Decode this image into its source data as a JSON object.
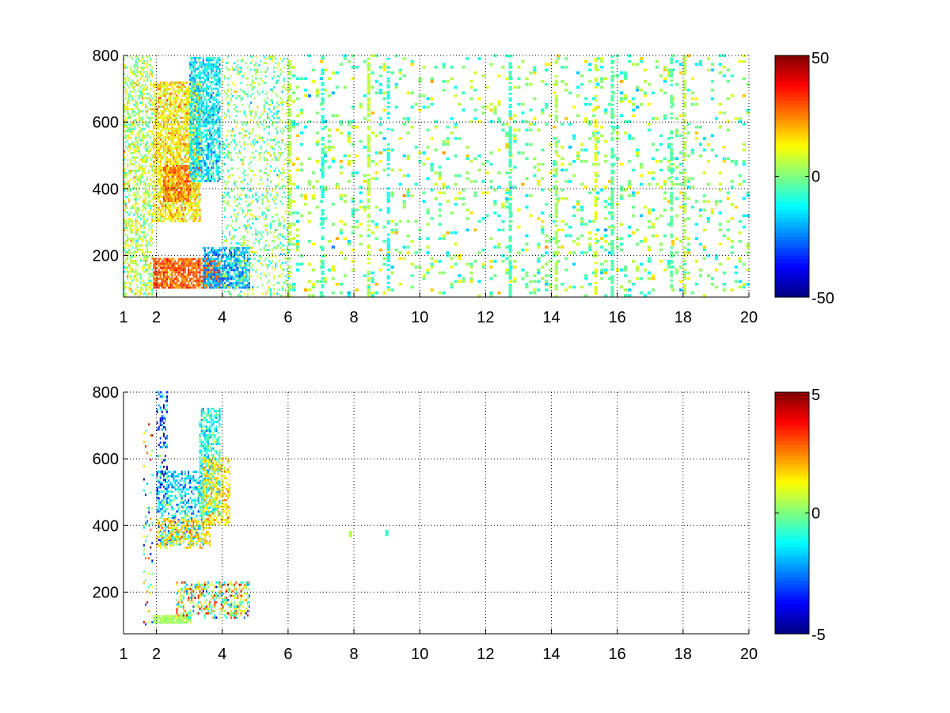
{
  "chart_data": [
    {
      "type": "heatmap",
      "title": "",
      "xlabel": "",
      "ylabel": "",
      "x_ticks": [
        1,
        2,
        4,
        6,
        8,
        10,
        12,
        14,
        16,
        18,
        20
      ],
      "y_ticks": [
        200,
        400,
        600,
        800
      ],
      "xlim": [
        1,
        20
      ],
      "ylim": [
        75,
        800
      ],
      "grid": true,
      "colormap": "jet",
      "colorbar": {
        "range": [
          -50,
          50
        ],
        "ticks": [
          50,
          0,
          -50
        ]
      },
      "regions": [
        {
          "x": [
            1.0,
            1.9
          ],
          "y": [
            75,
            800
          ],
          "z": 5,
          "density": 0.45,
          "spread": 12
        },
        {
          "x": [
            1.9,
            3.3
          ],
          "y": [
            300,
            720
          ],
          "z": 14,
          "density": 0.72,
          "spread": 10
        },
        {
          "x": [
            2.2,
            3.0
          ],
          "y": [
            360,
            470
          ],
          "z": 25,
          "density": 0.8,
          "spread": 8
        },
        {
          "x": [
            3.0,
            3.9
          ],
          "y": [
            420,
            790
          ],
          "z": -14,
          "density": 0.7,
          "spread": 10
        },
        {
          "x": [
            1.9,
            3.9
          ],
          "y": [
            100,
            190
          ],
          "z": 28,
          "density": 0.85,
          "spread": 8
        },
        {
          "x": [
            3.4,
            4.8
          ],
          "y": [
            100,
            220
          ],
          "z": -22,
          "density": 0.7,
          "spread": 8
        },
        {
          "x": [
            4.0,
            6.0
          ],
          "y": [
            75,
            800
          ],
          "z": 0,
          "density": 0.22,
          "spread": 12
        },
        {
          "x": [
            6.0,
            20.0
          ],
          "y": [
            75,
            800
          ],
          "z": 0,
          "density": 0.14,
          "spread": 12
        }
      ],
      "stripes": [
        {
          "x": 6.0,
          "z": 5
        },
        {
          "x": 7.0,
          "z": -8
        },
        {
          "x": 8.4,
          "z": 6
        },
        {
          "x": 9.0,
          "z": -10
        },
        {
          "x": 12.7,
          "z": -6
        },
        {
          "x": 14.1,
          "z": 5
        },
        {
          "x": 15.3,
          "z": 9
        },
        {
          "x": 15.8,
          "z": -4
        },
        {
          "x": 17.6,
          "z": -3
        },
        {
          "x": 18.0,
          "z": 6
        }
      ]
    },
    {
      "type": "heatmap",
      "title": "",
      "xlabel": "",
      "ylabel": "",
      "x_ticks": [
        1,
        2,
        4,
        6,
        8,
        10,
        12,
        14,
        16,
        18,
        20
      ],
      "y_ticks": [
        200,
        400,
        600,
        800
      ],
      "xlim": [
        1,
        20
      ],
      "ylim": [
        75,
        800
      ],
      "grid": true,
      "colormap": "jet",
      "colorbar": {
        "range": [
          -5,
          5
        ],
        "ticks": [
          5,
          0,
          -5
        ]
      },
      "regions": [
        {
          "x": [
            2.0,
            3.4
          ],
          "y": [
            340,
            560
          ],
          "z": -1.5,
          "density": 0.45,
          "spread": 1.5
        },
        {
          "x": [
            3.3,
            3.9
          ],
          "y": [
            430,
            750
          ],
          "z": -1.0,
          "density": 0.55,
          "spread": 1.2
        },
        {
          "x": [
            3.4,
            4.2
          ],
          "y": [
            400,
            600
          ],
          "z": 1.5,
          "density": 0.5,
          "spread": 0.8
        },
        {
          "x": [
            2.0,
            3.6
          ],
          "y": [
            330,
            420
          ],
          "z": 1.8,
          "density": 0.45,
          "spread": 0.8
        },
        {
          "x": [
            2.0,
            2.3
          ],
          "y": [
            500,
            800
          ],
          "z": -3.0,
          "density": 0.3,
          "spread": 2.0
        },
        {
          "x": [
            1.9,
            3.0
          ],
          "y": [
            105,
            130
          ],
          "z": 0.4,
          "density": 0.9,
          "spread": 0.3
        },
        {
          "x": [
            2.6,
            4.8
          ],
          "y": [
            120,
            230
          ],
          "z": 0.8,
          "density": 0.45,
          "spread": 2.8
        },
        {
          "x": [
            1.6,
            1.9
          ],
          "y": [
            100,
            700
          ],
          "z": 0,
          "density": 0.12,
          "spread": 4.0
        }
      ],
      "spots": [
        {
          "x": 7.85,
          "y": 365,
          "z": 0.5
        },
        {
          "x": 8.95,
          "y": 368,
          "z": -0.8
        }
      ]
    }
  ]
}
